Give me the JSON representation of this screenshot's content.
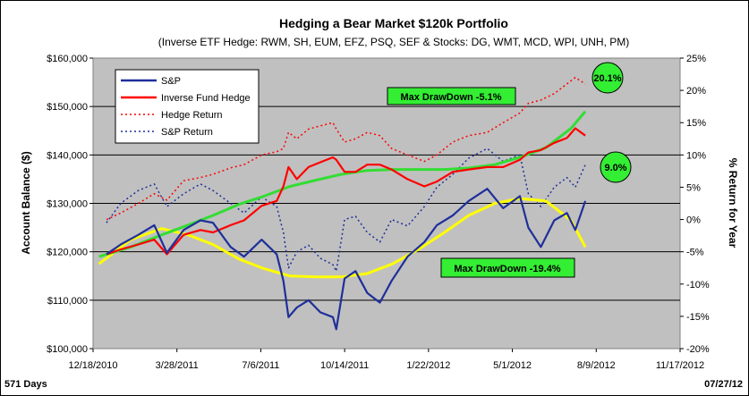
{
  "chart_data": {
    "type": "line",
    "title": "Hedging a Bear Market $120k Portfolio",
    "subtitle": "(Inverse ETF Hedge: RWM, SH, EUM, EFZ, PSQ, SEF & Stocks: DG, WMT, MCD, WPI, UNH, PM)",
    "ylabel_left": "Account Balance ($)",
    "ylabel_right": "% Return for Year",
    "x_ticks": [
      "12/18/2010",
      "3/28/2011",
      "7/6/2011",
      "10/14/2011",
      "1/22/2012",
      "5/1/2012",
      "8/9/2012",
      "11/17/2012"
    ],
    "y_left_ticks": [
      "$100,000",
      "$110,000",
      "$120,000",
      "$130,000",
      "$140,000",
      "$150,000",
      "$160,000"
    ],
    "y_right_ticks": [
      "-20%",
      "-15%",
      "-10%",
      "-5%",
      "0%",
      "5%",
      "10%",
      "15%",
      "20%",
      "25%"
    ],
    "ylim_left": [
      100000,
      160000
    ],
    "ylim_right": [
      -20,
      25
    ],
    "xlim": [
      "12/18/2010",
      "11/17/2012"
    ],
    "grid": "horizontal",
    "legend": {
      "position": "top-left",
      "entries": [
        {
          "label": "S&P",
          "color": "#1f2f9a",
          "style": "solid"
        },
        {
          "label": "Inverse Fund Hedge",
          "color": "#ff0000",
          "style": "solid"
        },
        {
          "label": "Hedge Return",
          "color": "#ff0000",
          "style": "dotted"
        },
        {
          "label": "S&P Return",
          "color": "#1f2f9a",
          "style": "dotted"
        }
      ]
    },
    "series": [
      {
        "name": "S&P",
        "axis": "left",
        "color": "#1f2f9a",
        "style": "solid",
        "x": [
          "1/3/2011",
          "1/20/2011",
          "2/10/2011",
          "3/1/2011",
          "3/16/2011",
          "4/5/2011",
          "4/25/2011",
          "5/10/2011",
          "5/31/2011",
          "6/16/2011",
          "7/7/2011",
          "7/25/2011",
          "8/2/2011",
          "8/8/2011",
          "8/18/2011",
          "9/1/2011",
          "9/15/2011",
          "9/30/2011",
          "10/4/2011",
          "10/14/2011",
          "10/27/2011",
          "11/10/2011",
          "11/25/2011",
          "12/9/2011",
          "12/28/2011",
          "1/17/2012",
          "2/1/2012",
          "2/20/2012",
          "3/10/2012",
          "4/1/2012",
          "4/20/2012",
          "5/10/2012",
          "5/20/2012",
          "6/4/2012",
          "6/20/2012",
          "7/5/2012",
          "7/15/2012",
          "7/27/2012"
        ],
        "y": [
          119500,
          121500,
          123500,
          125500,
          119800,
          124500,
          126500,
          126000,
          121000,
          119000,
          122500,
          119500,
          114000,
          106500,
          108500,
          110000,
          107500,
          106500,
          104000,
          114500,
          116000,
          111500,
          109500,
          114000,
          119000,
          122000,
          125500,
          127500,
          130500,
          133000,
          129000,
          131500,
          125000,
          121000,
          126500,
          128000,
          124500,
          130500
        ]
      },
      {
        "name": "Inverse Fund Hedge",
        "axis": "left",
        "color": "#ff0000",
        "style": "solid",
        "x": [
          "1/3/2011",
          "1/20/2011",
          "2/10/2011",
          "3/1/2011",
          "3/16/2011",
          "4/5/2011",
          "4/25/2011",
          "5/10/2011",
          "5/31/2011",
          "6/16/2011",
          "7/7/2011",
          "7/25/2011",
          "8/2/2011",
          "8/8/2011",
          "8/18/2011",
          "9/1/2011",
          "9/15/2011",
          "9/30/2011",
          "10/4/2011",
          "10/14/2011",
          "10/27/2011",
          "11/10/2011",
          "11/25/2011",
          "12/9/2011",
          "12/28/2011",
          "1/17/2012",
          "2/1/2012",
          "2/20/2012",
          "3/10/2012",
          "4/1/2012",
          "4/20/2012",
          "5/10/2012",
          "5/20/2012",
          "6/4/2012",
          "6/20/2012",
          "7/5/2012",
          "7/15/2012",
          "7/27/2012"
        ],
        "y": [
          119500,
          120500,
          121500,
          122500,
          119500,
          123500,
          124500,
          124000,
          125500,
          126500,
          129500,
          130500,
          133500,
          137500,
          135000,
          137500,
          138500,
          139500,
          139000,
          136500,
          136500,
          138000,
          138000,
          137000,
          135000,
          133500,
          134500,
          136500,
          137000,
          137500,
          137500,
          139000,
          140500,
          141000,
          142500,
          143500,
          145500,
          144000
        ]
      },
      {
        "name": "Hedge Return",
        "axis": "right",
        "color": "#ff0000",
        "style": "dotted",
        "x": [
          "1/3/2011",
          "1/20/2011",
          "2/10/2011",
          "3/1/2011",
          "3/16/2011",
          "4/5/2011",
          "4/25/2011",
          "5/10/2011",
          "5/31/2011",
          "6/16/2011",
          "7/7/2011",
          "7/25/2011",
          "8/2/2011",
          "8/8/2011",
          "8/18/2011",
          "9/1/2011",
          "9/15/2011",
          "9/30/2011",
          "10/4/2011",
          "10/14/2011",
          "10/27/2011",
          "11/10/2011",
          "11/25/2011",
          "12/9/2011",
          "12/28/2011",
          "1/17/2012",
          "2/1/2012",
          "2/20/2012",
          "3/10/2012",
          "4/1/2012",
          "4/20/2012",
          "5/10/2012",
          "5/20/2012",
          "6/4/2012",
          "6/20/2012",
          "7/5/2012",
          "7/15/2012",
          "7/27/2012"
        ],
        "y": [
          0,
          1,
          2.5,
          4,
          3,
          6,
          6.5,
          7,
          8,
          8.5,
          10,
          10.5,
          11,
          13.5,
          12.5,
          14,
          14.5,
          15,
          14,
          12,
          12.5,
          13.5,
          13,
          11,
          10,
          9,
          10,
          12,
          13,
          13.5,
          15,
          16.5,
          18,
          18.5,
          19.5,
          21,
          22,
          21
        ]
      },
      {
        "name": "S&P Return",
        "axis": "right",
        "color": "#1f2f9a",
        "style": "dotted",
        "x": [
          "1/3/2011",
          "1/20/2011",
          "2/10/2011",
          "3/1/2011",
          "3/16/2011",
          "4/5/2011",
          "4/25/2011",
          "5/10/2011",
          "5/31/2011",
          "6/16/2011",
          "7/7/2011",
          "7/25/2011",
          "8/2/2011",
          "8/8/2011",
          "8/18/2011",
          "9/1/2011",
          "9/15/2011",
          "9/30/2011",
          "10/4/2011",
          "10/14/2011",
          "10/27/2011",
          "11/10/2011",
          "11/25/2011",
          "12/9/2011",
          "12/28/2011",
          "1/17/2012",
          "2/1/2012",
          "2/20/2012",
          "3/10/2012",
          "4/1/2012",
          "4/20/2012",
          "5/10/2012",
          "5/20/2012",
          "6/4/2012",
          "6/20/2012",
          "7/5/2012",
          "7/15/2012",
          "7/27/2012"
        ],
        "y": [
          -0.5,
          2.5,
          4.5,
          5.5,
          2,
          4,
          5.5,
          4.5,
          2.5,
          1,
          3.5,
          2,
          -2,
          -7.5,
          -5,
          -4,
          -6,
          -7,
          -8,
          0,
          0.5,
          -2,
          -3.5,
          0,
          -1,
          2,
          5,
          7,
          9.5,
          11,
          9,
          10,
          4,
          2,
          5,
          6.5,
          5,
          8.5
        ]
      },
      {
        "name": "S&P trend",
        "axis": "left",
        "color": "#ffff00",
        "style": "solid",
        "x": [
          "12/25/2010",
          "2/1/2011",
          "3/10/2011",
          "4/10/2011",
          "5/10/2011",
          "6/10/2011",
          "7/10/2011",
          "8/10/2011",
          "9/10/2011",
          "10/10/2011",
          "11/10/2011",
          "12/10/2011",
          "1/10/2012",
          "2/10/2012",
          "3/10/2012",
          "4/10/2012",
          "5/10/2012",
          "6/10/2012",
          "7/10/2012",
          "7/27/2012"
        ],
        "y": [
          117500,
          122500,
          124800,
          123500,
          121500,
          118500,
          116500,
          115000,
          114800,
          114800,
          115500,
          117500,
          120500,
          124000,
          127500,
          130000,
          131000,
          130500,
          126500,
          121000
        ]
      },
      {
        "name": "Hedge trend",
        "axis": "left",
        "color": "#33dd33",
        "style": "solid",
        "x": [
          "12/25/2010",
          "2/1/2011",
          "3/10/2011",
          "4/10/2011",
          "5/10/2011",
          "6/10/2011",
          "7/10/2011",
          "8/10/2011",
          "9/10/2011",
          "10/10/2011",
          "11/10/2011",
          "12/10/2011",
          "1/10/2012",
          "2/10/2012",
          "3/10/2012",
          "4/10/2012",
          "5/10/2012",
          "6/10/2012",
          "7/10/2012",
          "7/27/2012"
        ],
        "y": [
          119000,
          121000,
          123500,
          125500,
          127500,
          129800,
          131500,
          133500,
          134800,
          136000,
          136800,
          137000,
          137000,
          137000,
          137300,
          138000,
          139500,
          141500,
          145500,
          149000
        ]
      }
    ],
    "annotations": [
      {
        "text": "Max DrawDown -5.1%",
        "color": "#33ee33"
      },
      {
        "text": "Max DrawDown -19.4%",
        "color": "#33ee33"
      },
      {
        "text": "20.1%",
        "shape": "circle",
        "color": "#33ee33"
      },
      {
        "text": "9.0%",
        "shape": "circle",
        "color": "#33ee33"
      }
    ],
    "footer_left": "571 Days",
    "footer_right": "07/27/12"
  }
}
